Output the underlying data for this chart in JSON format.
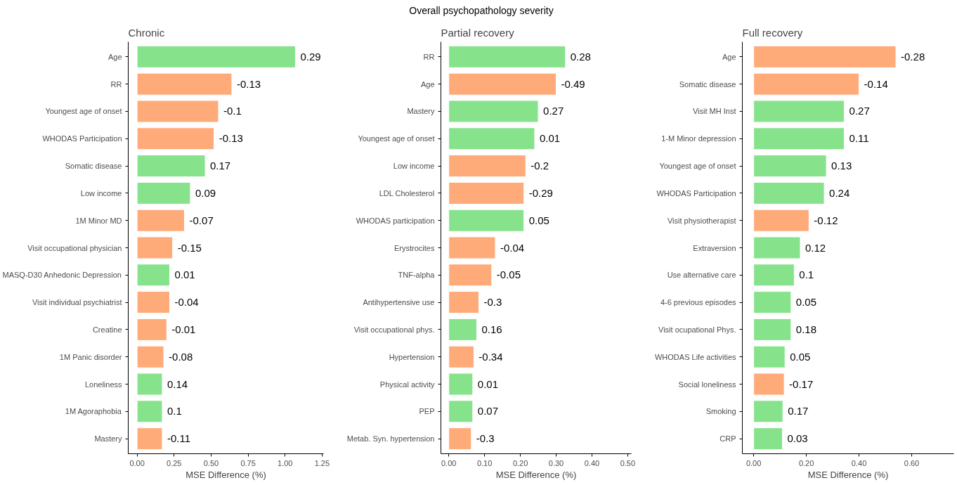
{
  "chart_data": [
    {
      "type": "bar",
      "orientation": "horizontal",
      "title": "Chronic",
      "xlabel": "MSE Difference (%)",
      "categories": [
        "Age",
        "RR",
        "Youngest age of onset",
        "WHODAS Participation",
        "Somatic disease",
        "Low income",
        "1M Minor MD",
        "Visit occupational physician",
        "MASQ-D30 Anhedonic Depression",
        "Visit individual psychiatrist",
        "Creatine",
        "1M Panic disorder",
        "Loneliness",
        "1M Agoraphobia",
        "Mastery"
      ],
      "values": [
        1.07,
        0.64,
        0.55,
        0.52,
        0.46,
        0.36,
        0.32,
        0.24,
        0.22,
        0.22,
        0.2,
        0.18,
        0.17,
        0.17,
        0.17
      ],
      "colors": [
        "#87e38b",
        "#ffaa79",
        "#ffaa79",
        "#ffaa79",
        "#87e38b",
        "#87e38b",
        "#ffaa79",
        "#ffaa79",
        "#87e38b",
        "#ffaa79",
        "#ffaa79",
        "#ffaa79",
        "#87e38b",
        "#87e38b",
        "#ffaa79"
      ],
      "annotations": [
        {
          "text": "0.29",
          "x": 1.07,
          "y": "Age"
        },
        {
          "text": "-0.13",
          "x": 0.64,
          "y": "RR"
        },
        {
          "text": "-0.1",
          "x": 0.55,
          "y": "Youngest age of onset"
        },
        {
          "text": "-0.13",
          "x": 0.52,
          "y": "WHODAS Participation"
        },
        {
          "text": "0.17",
          "x": 0.46,
          "y": "Somatic disease"
        },
        {
          "text": "0.09",
          "x": 0.36,
          "y": "Low income"
        },
        {
          "text": "-0.07",
          "x": 0.32,
          "y": "1M Minor MD"
        },
        {
          "text": "-0.15",
          "x": 0.24,
          "y": "Visit occupational physician"
        },
        {
          "text": "0.01",
          "x": 0.22,
          "y": "MASQ-D30 Anhedonic Depression"
        },
        {
          "text": "-0.04",
          "x": 0.22,
          "y": "Visit individual psychiatrist"
        },
        {
          "text": "-0.01",
          "x": 0.2,
          "y": "Creatine"
        },
        {
          "text": "-0.08",
          "x": 0.18,
          "y": "1M Panic disorder"
        },
        {
          "text": "0.14",
          "x": 0.17,
          "y": "Loneliness"
        },
        {
          "text": "0.1",
          "x": 0.17,
          "y": "1M Agoraphobia"
        },
        {
          "text": "-0.11",
          "x": 0.17,
          "y": "Mastery"
        }
      ],
      "xlim": [
        -0.06,
        1.26
      ],
      "xticks": [
        {
          "value": 0,
          "label": "0.00"
        },
        {
          "value": 0.25,
          "label": "0.25"
        },
        {
          "value": 0.5,
          "label": "0.50"
        },
        {
          "value": 0.75,
          "label": "0.75"
        },
        {
          "value": 1,
          "label": "1.00"
        },
        {
          "value": 1.25,
          "label": "1.25"
        }
      ],
      "grid": false
    },
    {
      "type": "bar",
      "orientation": "horizontal",
      "title": "Partial recovery",
      "xlabel": "MSE Difference (%)",
      "categories": [
        "RR",
        "Age",
        "Mastery",
        "Youngest age of onset",
        "Low income",
        "LDL Cholesterol",
        "WHODAS participation",
        "Erystrocites",
        "TNF-alpha",
        "Antihypertensive use",
        "Visit occupational phys.",
        "Hypertension",
        "Physical activity",
        "PEP",
        "Metab. Syn. hypertension"
      ],
      "values": [
        0.326,
        0.3,
        0.25,
        0.24,
        0.215,
        0.21,
        0.21,
        0.13,
        0.12,
        0.084,
        0.078,
        0.07,
        0.067,
        0.067,
        0.063
      ],
      "colors": [
        "#87e38b",
        "#ffaa79",
        "#87e38b",
        "#87e38b",
        "#ffaa79",
        "#ffaa79",
        "#87e38b",
        "#ffaa79",
        "#ffaa79",
        "#ffaa79",
        "#87e38b",
        "#ffaa79",
        "#87e38b",
        "#87e38b",
        "#ffaa79"
      ],
      "annotations": [
        "Overall psychopathology severity",
        {
          "text": "0.28",
          "x": 0.326,
          "y": "RR"
        },
        {
          "text": "-0.49",
          "x": 0.3,
          "y": "Age"
        },
        {
          "text": "0.27",
          "x": 0.25,
          "y": "Mastery"
        },
        {
          "text": "0.01",
          "x": 0.24,
          "y": "Youngest age of onset"
        },
        {
          "text": "-0.2",
          "x": 0.215,
          "y": "Low income"
        },
        {
          "text": "-0.29",
          "x": 0.21,
          "y": "LDL Cholesterol"
        },
        {
          "text": "0.05",
          "x": 0.21,
          "y": "WHODAS participation"
        },
        {
          "text": "-0.04",
          "x": 0.13,
          "y": "Erystrocites"
        },
        {
          "text": "-0.05",
          "x": 0.12,
          "y": "TNF-alpha"
        },
        {
          "text": "-0.3",
          "x": 0.084,
          "y": "Antihypertensive use"
        },
        {
          "text": "0.16",
          "x": 0.078,
          "y": "Visit occupational phys."
        },
        {
          "text": "-0.34",
          "x": 0.07,
          "y": "Hypertension"
        },
        {
          "text": "0.01",
          "x": 0.067,
          "y": "Physical activity"
        },
        {
          "text": "0.07",
          "x": 0.067,
          "y": "PEP"
        },
        {
          "text": "-0.3",
          "x": 0.063,
          "y": "Metab. Syn. hypertension"
        }
      ],
      "xlim": [
        -0.022,
        0.51
      ],
      "xticks": [
        {
          "value": 0,
          "label": "0.00"
        },
        {
          "value": 0.1,
          "label": "0.10"
        },
        {
          "value": 0.2,
          "label": "0.20"
        },
        {
          "value": 0.3,
          "label": "0.30"
        },
        {
          "value": 0.4,
          "label": "0.40"
        },
        {
          "value": 0.5,
          "label": "0.50"
        }
      ],
      "grid": false
    },
    {
      "type": "bar",
      "orientation": "horizontal",
      "title": "Full recovery",
      "xlabel": "MSE Difference (%)",
      "categories": [
        "Age",
        "Somatic disease",
        "Visit MH Inst",
        "1-M Minor depression",
        "Youngest age of onset",
        "WHODAS Participation",
        "Visit physiotherapist",
        "Extraversion",
        "Use alternative care",
        "4-6 previous episodes",
        "Visit ocupational Phys.",
        "WHODAS Life activities",
        "Social loneliness",
        "Smoking",
        "CRP"
      ],
      "values": [
        0.54,
        0.4,
        0.344,
        0.344,
        0.276,
        0.268,
        0.21,
        0.177,
        0.154,
        0.142,
        0.142,
        0.119,
        0.116,
        0.111,
        0.109
      ],
      "colors": [
        "#ffaa79",
        "#ffaa79",
        "#87e38b",
        "#87e38b",
        "#87e38b",
        "#87e38b",
        "#ffaa79",
        "#87e38b",
        "#87e38b",
        "#87e38b",
        "#87e38b",
        "#87e38b",
        "#ffaa79",
        "#87e38b",
        "#87e38b"
      ],
      "annotations": [
        {
          "text": "-0.28",
          "x": 0.54,
          "y": "Age"
        },
        {
          "text": "-0.14",
          "x": 0.4,
          "y": "Somatic disease"
        },
        {
          "text": "0.27",
          "x": 0.344,
          "y": "Visit MH Inst"
        },
        {
          "text": "0.11",
          "x": 0.344,
          "y": "1-M Minor depression"
        },
        {
          "text": "0.13",
          "x": 0.276,
          "y": "Youngest age of onset"
        },
        {
          "text": "0.24",
          "x": 0.268,
          "y": "WHODAS Participation"
        },
        {
          "text": "-0.12",
          "x": 0.21,
          "y": "Visit physiotherapist"
        },
        {
          "text": "0.12",
          "x": 0.177,
          "y": "Extraversion"
        },
        {
          "text": "0.1",
          "x": 0.154,
          "y": "Use alternative care"
        },
        {
          "text": "0.05",
          "x": 0.142,
          "y": "4-6 previous episodes"
        },
        {
          "text": "0.18",
          "x": 0.142,
          "y": "Visit ocupational Phys."
        },
        {
          "text": "0.05",
          "x": 0.119,
          "y": "WHODAS Life activities"
        },
        {
          "text": "-0.17",
          "x": 0.116,
          "y": "Social loneliness"
        },
        {
          "text": "0.17",
          "x": 0.111,
          "y": "Smoking"
        },
        {
          "text": "0.03",
          "x": 0.109,
          "y": "CRP"
        }
      ],
      "xlim": [
        -0.043,
        0.76
      ],
      "xticks": [
        {
          "value": 0,
          "label": "0.00"
        },
        {
          "value": 0.2,
          "label": "0.20"
        },
        {
          "value": 0.4,
          "label": "0.40"
        },
        {
          "value": 0.6,
          "label": "0.60"
        }
      ],
      "grid": false
    }
  ]
}
